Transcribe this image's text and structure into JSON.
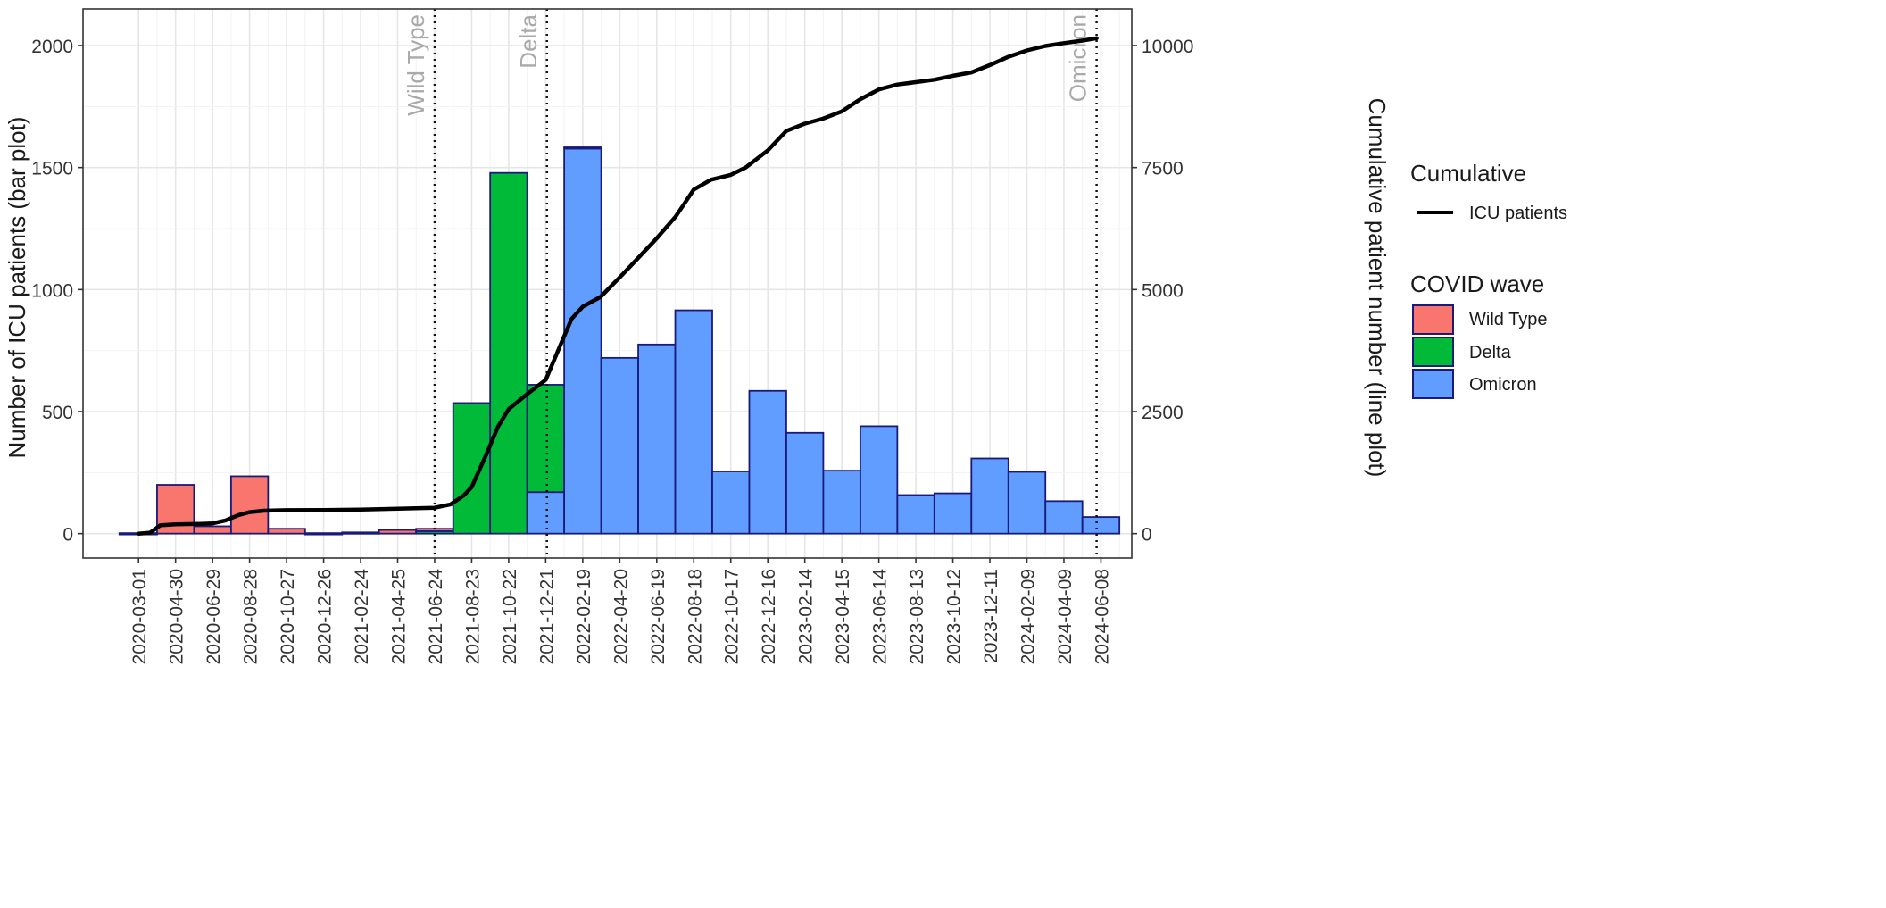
{
  "chart_data": {
    "type": "bar",
    "ylabel": "Number of ICU patients (bar plot)",
    "y2label": "Cumulative patient number (line plot)",
    "ylim": [
      -100,
      2150
    ],
    "y2lim": [
      -500,
      10750
    ],
    "yticks": [
      0,
      500,
      1000,
      1500,
      2000
    ],
    "y2ticks": [
      0,
      2500,
      5000,
      7500,
      10000
    ],
    "xlim": [
      "2019-12-02",
      "2024-07-28"
    ],
    "xticks": [
      "2020-03-01",
      "2020-04-30",
      "2020-06-29",
      "2020-08-28",
      "2020-10-27",
      "2020-12-26",
      "2021-02-24",
      "2021-04-25",
      "2021-06-24",
      "2021-08-23",
      "2021-10-22",
      "2021-12-21",
      "2022-02-19",
      "2022-04-20",
      "2022-06-19",
      "2022-08-18",
      "2022-10-17",
      "2022-12-16",
      "2023-02-14",
      "2023-04-15",
      "2023-06-14",
      "2023-08-13",
      "2023-10-12",
      "2023-12-11",
      "2024-02-09",
      "2024-04-09",
      "2024-06-08"
    ],
    "grid": true,
    "bar_colors": {
      "Wild Type": "#F8766D",
      "Delta": "#00BA38",
      "Omicron": "#619CFF"
    },
    "bar_outline": "#1a1a7a",
    "bars": [
      {
        "start": "2020-01-30",
        "end": "2020-03-31",
        "Wild Type": 2,
        "Delta": 0,
        "Omicron": 0
      },
      {
        "start": "2020-03-31",
        "end": "2020-05-30",
        "Wild Type": 200,
        "Delta": 0,
        "Omicron": 0
      },
      {
        "start": "2020-05-30",
        "end": "2020-07-29",
        "Wild Type": 30,
        "Delta": 0,
        "Omicron": 0
      },
      {
        "start": "2020-07-29",
        "end": "2020-09-27",
        "Wild Type": 235,
        "Delta": 0,
        "Omicron": 0
      },
      {
        "start": "2020-09-27",
        "end": "2020-11-26",
        "Wild Type": 20,
        "Delta": 0,
        "Omicron": 0
      },
      {
        "start": "2020-11-26",
        "end": "2021-01-25",
        "Wild Type": 2,
        "Delta": 0,
        "Omicron": 0
      },
      {
        "start": "2021-01-25",
        "end": "2021-03-26",
        "Wild Type": 5,
        "Delta": 0,
        "Omicron": 0
      },
      {
        "start": "2021-03-26",
        "end": "2021-05-25",
        "Wild Type": 15,
        "Delta": 0,
        "Omicron": 0
      },
      {
        "start": "2021-05-25",
        "end": "2021-07-24",
        "Wild Type": 10,
        "Delta": 10,
        "Omicron": 0
      },
      {
        "start": "2021-07-24",
        "end": "2021-09-22",
        "Wild Type": 0,
        "Delta": 535,
        "Omicron": 0
      },
      {
        "start": "2021-09-22",
        "end": "2021-11-21",
        "Wild Type": 0,
        "Delta": 1478,
        "Omicron": 0
      },
      {
        "start": "2021-11-21",
        "end": "2022-01-20",
        "Wild Type": 0,
        "Delta": 440,
        "Omicron": 170
      },
      {
        "start": "2022-01-20",
        "end": "2022-03-21",
        "Wild Type": 0,
        "Delta": 5,
        "Omicron": 1578
      },
      {
        "start": "2022-03-21",
        "end": "2022-05-20",
        "Wild Type": 0,
        "Delta": 0,
        "Omicron": 720
      },
      {
        "start": "2022-05-20",
        "end": "2022-07-19",
        "Wild Type": 0,
        "Delta": 0,
        "Omicron": 775
      },
      {
        "start": "2022-07-19",
        "end": "2022-09-17",
        "Wild Type": 0,
        "Delta": 0,
        "Omicron": 915
      },
      {
        "start": "2022-09-17",
        "end": "2022-11-16",
        "Wild Type": 0,
        "Delta": 0,
        "Omicron": 255
      },
      {
        "start": "2022-11-16",
        "end": "2023-01-15",
        "Wild Type": 0,
        "Delta": 0,
        "Omicron": 585
      },
      {
        "start": "2023-01-15",
        "end": "2023-03-16",
        "Wild Type": 0,
        "Delta": 0,
        "Omicron": 413
      },
      {
        "start": "2023-03-16",
        "end": "2023-05-15",
        "Wild Type": 0,
        "Delta": 0,
        "Omicron": 258
      },
      {
        "start": "2023-05-15",
        "end": "2023-07-14",
        "Wild Type": 0,
        "Delta": 0,
        "Omicron": 440
      },
      {
        "start": "2023-07-14",
        "end": "2023-09-12",
        "Wild Type": 0,
        "Delta": 0,
        "Omicron": 158
      },
      {
        "start": "2023-09-12",
        "end": "2023-11-11",
        "Wild Type": 0,
        "Delta": 0,
        "Omicron": 165
      },
      {
        "start": "2023-11-11",
        "end": "2024-01-10",
        "Wild Type": 0,
        "Delta": 0,
        "Omicron": 308
      },
      {
        "start": "2024-01-10",
        "end": "2024-03-10",
        "Wild Type": 0,
        "Delta": 0,
        "Omicron": 253
      },
      {
        "start": "2024-03-10",
        "end": "2024-05-09",
        "Wild Type": 0,
        "Delta": 0,
        "Omicron": 133
      },
      {
        "start": "2024-05-09",
        "end": "2024-07-08",
        "Wild Type": 0,
        "Delta": 0,
        "Omicron": 68
      }
    ],
    "cumulative_line": {
      "name": "ICU patients",
      "color": "#000000",
      "points": [
        [
          "2020-03-01",
          0
        ],
        [
          "2020-03-20",
          20
        ],
        [
          "2020-04-05",
          170
        ],
        [
          "2020-04-30",
          190
        ],
        [
          "2020-06-10",
          200
        ],
        [
          "2020-06-29",
          210
        ],
        [
          "2020-07-20",
          270
        ],
        [
          "2020-08-10",
          380
        ],
        [
          "2020-08-28",
          440
        ],
        [
          "2020-09-20",
          470
        ],
        [
          "2020-10-27",
          480
        ],
        [
          "2020-12-26",
          485
        ],
        [
          "2021-02-24",
          492
        ],
        [
          "2021-04-25",
          510
        ],
        [
          "2021-06-24",
          530
        ],
        [
          "2021-07-20",
          600
        ],
        [
          "2021-08-10",
          780
        ],
        [
          "2021-08-23",
          950
        ],
        [
          "2021-09-15",
          1600
        ],
        [
          "2021-10-05",
          2200
        ],
        [
          "2021-10-22",
          2550
        ],
        [
          "2021-11-20",
          2850
        ],
        [
          "2021-12-21",
          3150
        ],
        [
          "2022-01-15",
          3900
        ],
        [
          "2022-02-01",
          4400
        ],
        [
          "2022-02-19",
          4650
        ],
        [
          "2022-03-20",
          4850
        ],
        [
          "2022-04-20",
          5250
        ],
        [
          "2022-05-20",
          5650
        ],
        [
          "2022-06-19",
          6050
        ],
        [
          "2022-07-20",
          6500
        ],
        [
          "2022-08-18",
          7050
        ],
        [
          "2022-09-15",
          7250
        ],
        [
          "2022-10-17",
          7350
        ],
        [
          "2022-11-10",
          7500
        ],
        [
          "2022-12-16",
          7850
        ],
        [
          "2023-01-15",
          8250
        ],
        [
          "2023-02-14",
          8400
        ],
        [
          "2023-03-15",
          8500
        ],
        [
          "2023-04-15",
          8650
        ],
        [
          "2023-05-15",
          8900
        ],
        [
          "2023-06-14",
          9100
        ],
        [
          "2023-07-14",
          9200
        ],
        [
          "2023-08-13",
          9250
        ],
        [
          "2023-09-12",
          9300
        ],
        [
          "2023-10-12",
          9380
        ],
        [
          "2023-11-11",
          9450
        ],
        [
          "2023-12-11",
          9600
        ],
        [
          "2024-01-10",
          9770
        ],
        [
          "2024-02-09",
          9900
        ],
        [
          "2024-03-10",
          9990
        ],
        [
          "2024-04-09",
          10050
        ],
        [
          "2024-05-09",
          10100
        ],
        [
          "2024-06-01",
          10150
        ]
      ]
    },
    "vlines": [
      {
        "date": "2021-06-24",
        "label": "Wild Type"
      },
      {
        "date": "2021-12-23",
        "label": "Delta"
      },
      {
        "date": "2024-06-01",
        "label": "Omicron"
      }
    ],
    "legend": {
      "position": "right",
      "cumulative_title": "Cumulative",
      "cumulative_item": "ICU patients",
      "wave_title": "COVID wave",
      "wave_items": [
        "Wild Type",
        "Delta",
        "Omicron"
      ]
    }
  }
}
